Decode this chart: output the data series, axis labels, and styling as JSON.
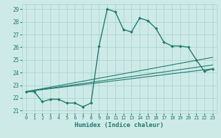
{
  "title": "",
  "xlabel": "Humidex (Indice chaleur)",
  "ylabel": "",
  "background_color": "#ceeae7",
  "grid_color": "#a8d5d0",
  "line_color": "#1a7a6e",
  "xlim": [
    -0.5,
    23.5
  ],
  "ylim": [
    20.8,
    29.4
  ],
  "xticks": [
    0,
    1,
    2,
    3,
    4,
    5,
    6,
    7,
    8,
    9,
    10,
    11,
    12,
    13,
    14,
    15,
    16,
    17,
    18,
    19,
    20,
    21,
    22,
    23
  ],
  "yticks": [
    21,
    22,
    23,
    24,
    25,
    26,
    27,
    28,
    29
  ],
  "series": [
    {
      "x": [
        0,
        1,
        2,
        3,
        4,
        5,
        6,
        7,
        8,
        9,
        10,
        11,
        12,
        13,
        14,
        15,
        16,
        17,
        18,
        19,
        20,
        21,
        22,
        23
      ],
      "y": [
        22.5,
        22.5,
        21.7,
        21.9,
        21.9,
        21.6,
        21.6,
        21.3,
        21.6,
        26.1,
        29.0,
        28.8,
        27.4,
        27.2,
        28.3,
        28.1,
        27.5,
        26.4,
        26.1,
        26.1,
        26.0,
        25.0,
        24.1,
        24.3
      ],
      "marker": "D",
      "markersize": 2.0,
      "linewidth": 1.0
    },
    {
      "x": [
        0,
        23
      ],
      "y": [
        22.5,
        24.3
      ],
      "marker": null,
      "linewidth": 0.8
    },
    {
      "x": [
        0,
        23
      ],
      "y": [
        22.5,
        24.6
      ],
      "marker": null,
      "linewidth": 0.8
    },
    {
      "x": [
        0,
        23
      ],
      "y": [
        22.5,
        25.2
      ],
      "marker": null,
      "linewidth": 0.8
    }
  ],
  "xlabel_fontsize": 6.5,
  "ytick_fontsize": 5.5,
  "xtick_fontsize": 5.0
}
